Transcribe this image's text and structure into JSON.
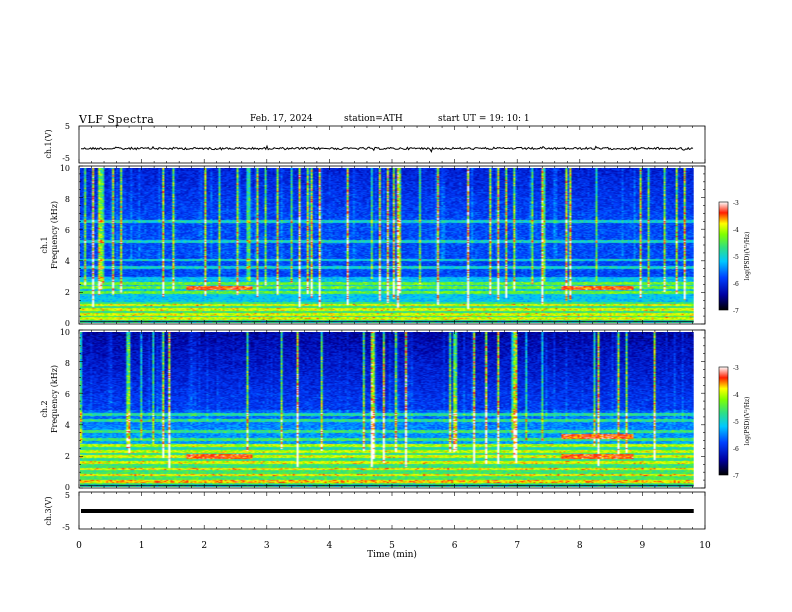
{
  "header": {
    "title": "VLF  Spectra",
    "date": "Feb. 17, 2024",
    "station": "station=ATH",
    "start_ut": "start  UT  =    19: 10: 1"
  },
  "chart_data": {
    "type": "heatmap",
    "xlabel": "Time  (min)",
    "xlim": [
      0,
      10
    ],
    "x_ticks": [
      "0",
      "1",
      "2",
      "3",
      "4",
      "5",
      "6",
      "7",
      "8",
      "9",
      "10"
    ],
    "data_end_min": 9.82,
    "panels": [
      {
        "id": "ch1-wave",
        "type": "line",
        "ylabel": "ch.1(V)",
        "ylim": [
          -5,
          5
        ],
        "y_ticks": [
          "5",
          "-5"
        ],
        "baseline": 0,
        "color": "#000000"
      },
      {
        "id": "ch1-spec",
        "type": "heatmap",
        "ylabel_top": "ch.1",
        "ylabel_bottom": "Frequency  (kHz)",
        "ylim": [
          0,
          10
        ],
        "y_ticks": [
          "0",
          "2",
          "4",
          "6",
          "8",
          "10"
        ],
        "colorbar_label": "log(PSD)(V²/Hz)",
        "colorbar_ticks": [
          "-3",
          "-4",
          "-5",
          "-6",
          "-7"
        ],
        "colorbar_range": [
          -7,
          -3
        ],
        "bright_bands_khz": [
          0.3,
          0.6,
          0.9,
          1.2,
          2.0,
          2.3,
          2.6,
          3.6,
          4.1,
          5.3,
          6.6
        ],
        "hot_segments": [
          {
            "t0": 1.7,
            "t1": 2.75,
            "f": 2.3
          },
          {
            "t0": 7.7,
            "t1": 8.85,
            "f": 2.3
          }
        ]
      },
      {
        "id": "ch2-spec",
        "type": "heatmap",
        "ylabel_top": "ch.2",
        "ylabel_bottom": "Frequency  (kHz)",
        "ylim": [
          0,
          10
        ],
        "y_ticks": [
          "0",
          "2",
          "4",
          "6",
          "8",
          "10"
        ],
        "colorbar_label": "log(PSD)(V²/Hz)",
        "colorbar_ticks": [
          "-3",
          "-4",
          "-5",
          "-6",
          "-7"
        ],
        "colorbar_range": [
          -7,
          -3
        ],
        "bright_bands_khz": [
          0.4,
          0.8,
          1.2,
          1.6,
          2.0,
          2.3,
          2.7,
          3.1,
          3.6,
          4.3,
          4.7
        ],
        "hot_segments": [
          {
            "t0": 1.7,
            "t1": 2.75,
            "f": 2.0
          },
          {
            "t0": 7.7,
            "t1": 8.85,
            "f": 2.0
          },
          {
            "t0": 7.7,
            "t1": 8.85,
            "f": 3.3
          }
        ]
      },
      {
        "id": "ch3-wave",
        "type": "line",
        "ylabel": "ch.3(V)",
        "ylim": [
          -5,
          5
        ],
        "y_ticks": [
          "5",
          "-5"
        ],
        "baseline": 0,
        "color": "#000000"
      }
    ]
  }
}
